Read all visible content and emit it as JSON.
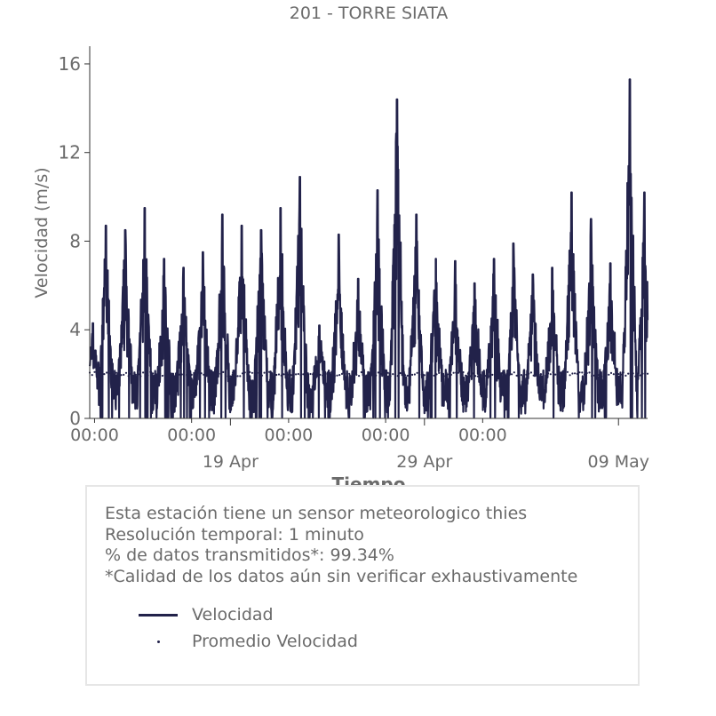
{
  "chart_data": {
    "type": "line",
    "title": "201 - TORRE SIATA",
    "xlabel": "Tiempo",
    "ylabel": "Velocidad (m/s)",
    "x_range": [
      "2026-04-11 18:00",
      "2026-05-10 12:00"
    ],
    "ylim": [
      0,
      16.8
    ],
    "yticks": [
      "0",
      "4",
      "8",
      "12",
      "16"
    ],
    "xticks_minor": [
      {
        "at": "2026-04-12 00:00",
        "label": "00:00"
      },
      {
        "at": "2026-04-17 00:00",
        "label": "00:00"
      },
      {
        "at": "2026-04-22 00:00",
        "label": "00:00"
      },
      {
        "at": "2026-04-27 00:00",
        "label": "00:00"
      },
      {
        "at": "2026-05-02 00:00",
        "label": "00:00"
      }
    ],
    "xticks_major": [
      {
        "at": "2026-04-19 00:00",
        "label": "19 Apr"
      },
      {
        "at": "2026-04-29 00:00",
        "label": "29 Apr"
      },
      {
        "at": "2026-05-09 00:00",
        "label": "09 May"
      }
    ],
    "grid": false,
    "colors": {
      "velocidad": "#22224a",
      "text": "#6b6b6b",
      "axis": "#333333"
    },
    "series": [
      {
        "name": "Velocidad",
        "style": "line",
        "daily_peaks": [
          {
            "t": "2026-04-11 22:00",
            "v": 4.3
          },
          {
            "t": "2026-04-12 14:00",
            "v": 8.7
          },
          {
            "t": "2026-04-13 14:00",
            "v": 8.5
          },
          {
            "t": "2026-04-14 14:00",
            "v": 9.5
          },
          {
            "t": "2026-04-15 14:00",
            "v": 7.2
          },
          {
            "t": "2026-04-16 14:00",
            "v": 6.8
          },
          {
            "t": "2026-04-17 14:00",
            "v": 7.5
          },
          {
            "t": "2026-04-18 14:00",
            "v": 9.2
          },
          {
            "t": "2026-04-19 14:00",
            "v": 8.7
          },
          {
            "t": "2026-04-20 14:00",
            "v": 8.5
          },
          {
            "t": "2026-04-21 14:00",
            "v": 9.5
          },
          {
            "t": "2026-04-22 14:00",
            "v": 10.9
          },
          {
            "t": "2026-04-23 14:00",
            "v": 4.2
          },
          {
            "t": "2026-04-24 14:00",
            "v": 8.3
          },
          {
            "t": "2026-04-25 14:00",
            "v": 6.3
          },
          {
            "t": "2026-04-26 14:00",
            "v": 10.3
          },
          {
            "t": "2026-04-27 14:00",
            "v": 14.4
          },
          {
            "t": "2026-04-28 14:00",
            "v": 9.2
          },
          {
            "t": "2026-04-29 14:00",
            "v": 7.2
          },
          {
            "t": "2026-04-30 14:00",
            "v": 7.1
          },
          {
            "t": "2026-05-01 14:00",
            "v": 6.1
          },
          {
            "t": "2026-05-02 14:00",
            "v": 7.2
          },
          {
            "t": "2026-05-03 14:00",
            "v": 7.9
          },
          {
            "t": "2026-05-04 14:00",
            "v": 6.5
          },
          {
            "t": "2026-05-05 14:00",
            "v": 6.8
          },
          {
            "t": "2026-05-06 14:00",
            "v": 10.2
          },
          {
            "t": "2026-05-07 14:00",
            "v": 9.0
          },
          {
            "t": "2026-05-08 14:00",
            "v": 7.0
          },
          {
            "t": "2026-05-09 14:00",
            "v": 15.3
          },
          {
            "t": "2026-05-10 08:00",
            "v": 10.2
          }
        ]
      },
      {
        "name": "Promedio Velocidad",
        "style": "dot",
        "values_approx": 2.0
      }
    ]
  },
  "info": {
    "lines": [
      "Esta estación tiene un sensor meteorologico thies",
      "Resolución temporal: 1 minuto",
      "% de datos transmitidos*: 99.34%",
      "*Calidad de los datos aún sin verificar exhaustivamente"
    ]
  },
  "legend": {
    "items": [
      {
        "label": "Velocidad",
        "marker": "line"
      },
      {
        "label": "Promedio Velocidad",
        "marker": "dot"
      }
    ]
  }
}
